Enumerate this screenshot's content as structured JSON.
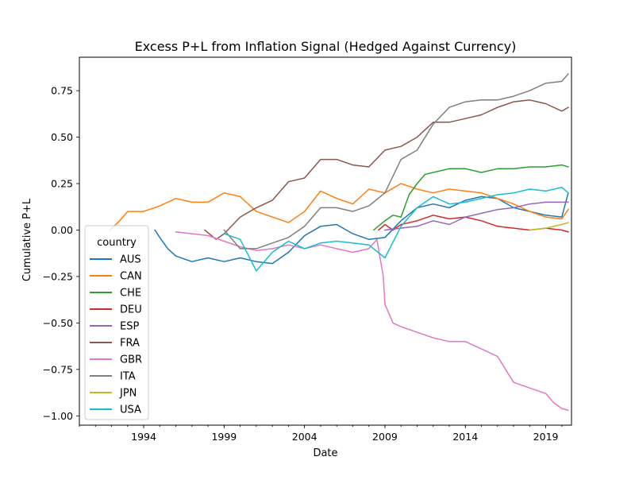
{
  "chart_data": {
    "type": "line",
    "title": "Excess P+L from Inflation Signal (Hedged Against Currency)",
    "xlabel": "Date",
    "ylabel": "Cumulative P+L",
    "xlim": [
      1990.0,
      2020.6
    ],
    "ylim": [
      -1.05,
      0.93
    ],
    "x_ticks": [
      1994,
      1999,
      2004,
      2009,
      2014,
      2019
    ],
    "y_ticks": [
      0.75,
      0.5,
      0.25,
      0.0,
      -0.25,
      -0.5,
      -0.75,
      -1.0
    ],
    "y_tick_labels": [
      "0.75",
      "0.50",
      "0.25",
      "0.00",
      "−0.25",
      "−0.50",
      "−0.75",
      "−1.00"
    ],
    "grid": false,
    "legend": {
      "title": "country",
      "placement": "lower-left"
    },
    "series": [
      {
        "name": "AUS",
        "color": "#1f77b4",
        "points": [
          [
            1994.7,
            0.0
          ],
          [
            1995.0,
            -0.04
          ],
          [
            1995.5,
            -0.1
          ],
          [
            1996.0,
            -0.14
          ],
          [
            1997.0,
            -0.17
          ],
          [
            1998.0,
            -0.15
          ],
          [
            1999.0,
            -0.17
          ],
          [
            2000.0,
            -0.15
          ],
          [
            2001.0,
            -0.17
          ],
          [
            2002.0,
            -0.18
          ],
          [
            2003.0,
            -0.12
          ],
          [
            2004.0,
            -0.03
          ],
          [
            2005.0,
            0.02
          ],
          [
            2006.0,
            0.03
          ],
          [
            2007.0,
            -0.02
          ],
          [
            2008.0,
            -0.05
          ],
          [
            2009.0,
            -0.04
          ],
          [
            2010.0,
            0.05
          ],
          [
            2011.0,
            0.12
          ],
          [
            2012.0,
            0.14
          ],
          [
            2013.0,
            0.12
          ],
          [
            2014.0,
            0.16
          ],
          [
            2015.0,
            0.18
          ],
          [
            2016.0,
            0.17
          ],
          [
            2017.0,
            0.12
          ],
          [
            2018.0,
            0.1
          ],
          [
            2019.0,
            0.08
          ],
          [
            2020.0,
            0.07
          ],
          [
            2020.4,
            0.2
          ]
        ]
      },
      {
        "name": "CAN",
        "color": "#ff7f0e",
        "points": [
          [
            1991.9,
            0.0
          ],
          [
            1992.5,
            0.05
          ],
          [
            1993.0,
            0.1
          ],
          [
            1994.0,
            0.1
          ],
          [
            1995.0,
            0.13
          ],
          [
            1996.0,
            0.17
          ],
          [
            1997.0,
            0.15
          ],
          [
            1998.0,
            0.15
          ],
          [
            1999.0,
            0.2
          ],
          [
            2000.0,
            0.18
          ],
          [
            2001.0,
            0.1
          ],
          [
            2002.0,
            0.07
          ],
          [
            2003.0,
            0.04
          ],
          [
            2004.0,
            0.1
          ],
          [
            2005.0,
            0.21
          ],
          [
            2006.0,
            0.17
          ],
          [
            2007.0,
            0.14
          ],
          [
            2008.0,
            0.22
          ],
          [
            2009.0,
            0.2
          ],
          [
            2010.0,
            0.25
          ],
          [
            2011.0,
            0.22
          ],
          [
            2012.0,
            0.2
          ],
          [
            2013.0,
            0.22
          ],
          [
            2014.0,
            0.21
          ],
          [
            2015.0,
            0.2
          ],
          [
            2016.0,
            0.17
          ],
          [
            2017.0,
            0.14
          ],
          [
            2018.0,
            0.1
          ],
          [
            2019.0,
            0.07
          ],
          [
            2020.0,
            0.06
          ],
          [
            2020.4,
            0.11
          ]
        ]
      },
      {
        "name": "CHE",
        "color": "#2ca02c",
        "points": [
          [
            2008.3,
            0.0
          ],
          [
            2009.0,
            0.05
          ],
          [
            2009.5,
            0.08
          ],
          [
            2010.0,
            0.07
          ],
          [
            2010.5,
            0.19
          ],
          [
            2011.0,
            0.25
          ],
          [
            2011.5,
            0.3
          ],
          [
            2012.0,
            0.31
          ],
          [
            2013.0,
            0.33
          ],
          [
            2014.0,
            0.33
          ],
          [
            2015.0,
            0.31
          ],
          [
            2016.0,
            0.33
          ],
          [
            2017.0,
            0.33
          ],
          [
            2018.0,
            0.34
          ],
          [
            2019.0,
            0.34
          ],
          [
            2020.0,
            0.35
          ],
          [
            2020.4,
            0.34
          ]
        ]
      },
      {
        "name": "DEU",
        "color": "#d62728",
        "points": [
          [
            2008.6,
            0.0
          ],
          [
            2009.0,
            0.03
          ],
          [
            2009.5,
            0.0
          ],
          [
            2010.0,
            0.03
          ],
          [
            2011.0,
            0.05
          ],
          [
            2012.0,
            0.08
          ],
          [
            2013.0,
            0.06
          ],
          [
            2014.0,
            0.07
          ],
          [
            2015.0,
            0.05
          ],
          [
            2016.0,
            0.02
          ],
          [
            2017.0,
            0.01
          ],
          [
            2018.0,
            0.0
          ],
          [
            2019.0,
            0.01
          ],
          [
            2020.0,
            0.0
          ],
          [
            2020.4,
            -0.01
          ]
        ]
      },
      {
        "name": "ESP",
        "color": "#9467bd",
        "points": [
          [
            2009.0,
            0.0
          ],
          [
            2010.0,
            0.01
          ],
          [
            2011.0,
            0.02
          ],
          [
            2012.0,
            0.05
          ],
          [
            2013.0,
            0.03
          ],
          [
            2014.0,
            0.07
          ],
          [
            2015.0,
            0.09
          ],
          [
            2016.0,
            0.11
          ],
          [
            2017.0,
            0.12
          ],
          [
            2018.0,
            0.14
          ],
          [
            2019.0,
            0.15
          ],
          [
            2020.0,
            0.15
          ],
          [
            2020.4,
            0.15
          ]
        ]
      },
      {
        "name": "FRA",
        "color": "#8c564b",
        "points": [
          [
            1997.8,
            0.0
          ],
          [
            1998.5,
            -0.05
          ],
          [
            1999.0,
            -0.02
          ],
          [
            2000.0,
            0.07
          ],
          [
            2001.0,
            0.12
          ],
          [
            2002.0,
            0.16
          ],
          [
            2003.0,
            0.26
          ],
          [
            2004.0,
            0.28
          ],
          [
            2005.0,
            0.38
          ],
          [
            2006.0,
            0.38
          ],
          [
            2007.0,
            0.35
          ],
          [
            2008.0,
            0.34
          ],
          [
            2009.0,
            0.43
          ],
          [
            2010.0,
            0.45
          ],
          [
            2011.0,
            0.5
          ],
          [
            2012.0,
            0.58
          ],
          [
            2013.0,
            0.58
          ],
          [
            2014.0,
            0.6
          ],
          [
            2015.0,
            0.62
          ],
          [
            2016.0,
            0.66
          ],
          [
            2017.0,
            0.69
          ],
          [
            2018.0,
            0.7
          ],
          [
            2019.0,
            0.68
          ],
          [
            2020.0,
            0.64
          ],
          [
            2020.4,
            0.66
          ]
        ]
      },
      {
        "name": "GBR",
        "color": "#e377c2",
        "points": [
          [
            1996.0,
            -0.01
          ],
          [
            1997.0,
            -0.02
          ],
          [
            1998.0,
            -0.03
          ],
          [
            1999.0,
            -0.06
          ],
          [
            2000.0,
            -0.09
          ],
          [
            2001.0,
            -0.11
          ],
          [
            2002.0,
            -0.1
          ],
          [
            2003.0,
            -0.08
          ],
          [
            2004.0,
            -0.1
          ],
          [
            2005.0,
            -0.08
          ],
          [
            2006.0,
            -0.1
          ],
          [
            2007.0,
            -0.12
          ],
          [
            2008.0,
            -0.1
          ],
          [
            2008.5,
            -0.05
          ],
          [
            2008.9,
            -0.25
          ],
          [
            2009.0,
            -0.4
          ],
          [
            2009.5,
            -0.5
          ],
          [
            2010.0,
            -0.52
          ],
          [
            2011.0,
            -0.55
          ],
          [
            2012.0,
            -0.58
          ],
          [
            2013.0,
            -0.6
          ],
          [
            2014.0,
            -0.6
          ],
          [
            2015.0,
            -0.64
          ],
          [
            2016.0,
            -0.68
          ],
          [
            2016.5,
            -0.75
          ],
          [
            2017.0,
            -0.82
          ],
          [
            2018.0,
            -0.85
          ],
          [
            2019.0,
            -0.88
          ],
          [
            2019.5,
            -0.93
          ],
          [
            2020.0,
            -0.96
          ],
          [
            2020.4,
            -0.97
          ]
        ]
      },
      {
        "name": "ITA",
        "color": "#7f7f7f",
        "points": [
          [
            1999.0,
            0.0
          ],
          [
            2000.0,
            -0.1
          ],
          [
            2001.0,
            -0.1
          ],
          [
            2002.0,
            -0.07
          ],
          [
            2003.0,
            -0.04
          ],
          [
            2004.0,
            0.02
          ],
          [
            2005.0,
            0.12
          ],
          [
            2006.0,
            0.12
          ],
          [
            2007.0,
            0.1
          ],
          [
            2008.0,
            0.13
          ],
          [
            2009.0,
            0.2
          ],
          [
            2010.0,
            0.38
          ],
          [
            2011.0,
            0.43
          ],
          [
            2012.0,
            0.57
          ],
          [
            2013.0,
            0.66
          ],
          [
            2014.0,
            0.69
          ],
          [
            2015.0,
            0.7
          ],
          [
            2016.0,
            0.7
          ],
          [
            2017.0,
            0.72
          ],
          [
            2018.0,
            0.75
          ],
          [
            2019.0,
            0.79
          ],
          [
            2020.0,
            0.8
          ],
          [
            2020.4,
            0.84
          ]
        ]
      },
      {
        "name": "JPN",
        "color": "#bcbd22",
        "points": [
          [
            2018.0,
            0.0
          ],
          [
            2019.0,
            0.01
          ],
          [
            2020.0,
            0.03
          ],
          [
            2020.4,
            0.04
          ]
        ]
      },
      {
        "name": "USA",
        "color": "#17becf",
        "points": [
          [
            1999.0,
            -0.02
          ],
          [
            2000.0,
            -0.05
          ],
          [
            2001.0,
            -0.22
          ],
          [
            2002.0,
            -0.12
          ],
          [
            2003.0,
            -0.06
          ],
          [
            2004.0,
            -0.1
          ],
          [
            2005.0,
            -0.07
          ],
          [
            2006.0,
            -0.06
          ],
          [
            2007.0,
            -0.07
          ],
          [
            2008.0,
            -0.08
          ],
          [
            2009.0,
            -0.15
          ],
          [
            2010.0,
            0.02
          ],
          [
            2011.0,
            0.12
          ],
          [
            2012.0,
            0.18
          ],
          [
            2013.0,
            0.14
          ],
          [
            2014.0,
            0.15
          ],
          [
            2015.0,
            0.17
          ],
          [
            2016.0,
            0.19
          ],
          [
            2017.0,
            0.2
          ],
          [
            2018.0,
            0.22
          ],
          [
            2019.0,
            0.21
          ],
          [
            2020.0,
            0.23
          ],
          [
            2020.4,
            0.2
          ]
        ]
      }
    ]
  }
}
